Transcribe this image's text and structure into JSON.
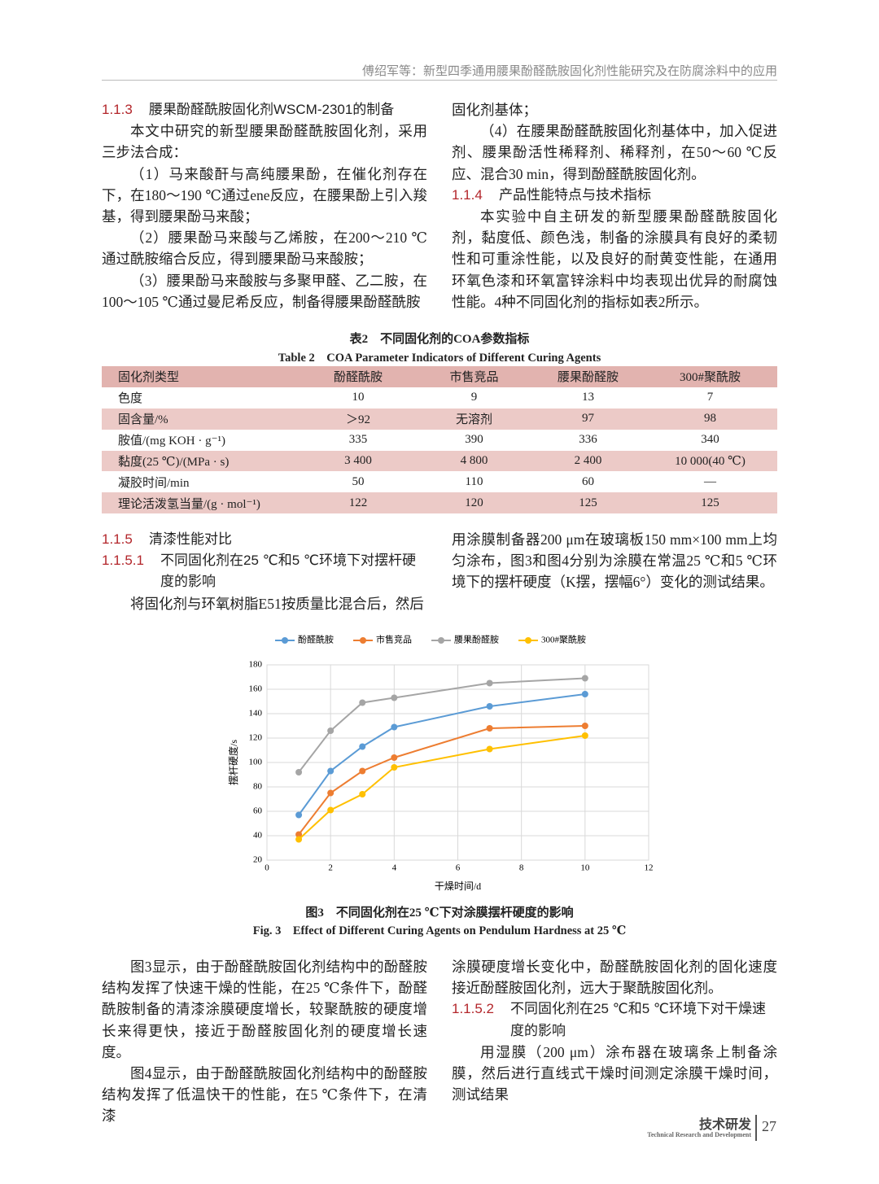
{
  "header": {
    "running_title": "傅绍军等：新型四季通用腰果酚醛酰胺固化剂性能研究及在防腐涂料中的应用"
  },
  "section_1_1_3": {
    "number": "1.1.3",
    "title": "腰果酚醛酰胺固化剂WSCM-2301的制备",
    "paragraphs": [
      "本文中研究的新型腰果酚醛酰胺固化剂，采用三步法合成：",
      "（1）马来酸酐与高纯腰果酚，在催化剂存在下，在180～190 ℃通过ene反应，在腰果酚上引入羧基，得到腰果酚马来酸；",
      "（2）腰果酚马来酸与乙烯胺，在200～210 ℃通过酰胺缩合反应，得到腰果酚马来酸胺；",
      "（3）腰果酚马来酸胺与多聚甲醛、乙二胺，在100～105 ℃通过曼尼希反应，制备得腰果酚醛酰胺",
      "固化剂基体；",
      "（4）在腰果酚醛酰胺固化剂基体中，加入促进剂、腰果酚活性稀释剂、稀释剂，在50～60 ℃反应、混合30 min，得到酚醛酰胺固化剂。"
    ]
  },
  "section_1_1_4": {
    "number": "1.1.4",
    "title": "产品性能特点与技术指标",
    "paragraphs": [
      "本实验中自主研发的新型腰果酚醛酰胺固化剂，黏度低、颜色浅，制备的涂膜具有良好的柔韧性和可重涂性能，以及良好的耐黄变性能，在通用环氧色漆和环氧富锌涂料中均表现出优异的耐腐蚀性能。4种不同固化剂的指标如表2所示。"
    ]
  },
  "table_2": {
    "caption_cn": "表2　不同固化剂的COA参数指标",
    "caption_en": "Table 2　COA Parameter Indicators of Different Curing Agents",
    "header": [
      "固化剂类型",
      "酚醛酰胺",
      "市售竞品",
      "腰果酚醛胺",
      "300#聚酰胺"
    ],
    "rows": [
      [
        "色度",
        "10",
        "9",
        "13",
        "7"
      ],
      [
        "固含量/%",
        "＞92",
        "无溶剂",
        "97",
        "98"
      ],
      [
        "胺值/(mg KOH · g⁻¹)",
        "335",
        "390",
        "336",
        "340"
      ],
      [
        "黏度(25 ℃)/(MPa · s)",
        "3 400",
        "4 800",
        "2 400",
        "10 000(40 ℃)"
      ],
      [
        "凝胶时间/min",
        "50",
        "110",
        "60",
        "—"
      ],
      [
        "理论活泼氢当量/(g · mol⁻¹)",
        "122",
        "120",
        "125",
        "125"
      ]
    ]
  },
  "section_1_1_5": {
    "number": "1.1.5",
    "title": "清漆性能对比"
  },
  "section_1_1_5_1": {
    "number": "1.1.5.1",
    "title": "不同固化剂在25 ℃和5 ℃环境下对摆杆硬度的影响",
    "paragraphs": [
      "将固化剂与环氧树脂E51按质量比混合后，然后",
      "用涂膜制备器200 μm在玻璃板150 mm×100 mm上均匀涂布，图3和图4分别为涂膜在常温25 ℃和5 ℃环境下的摆杆硬度（K摆，摆幅6°）变化的测试结果。"
    ]
  },
  "figure_3": {
    "caption_cn": "图3　不同固化剂在25 ℃下对涂膜摆杆硬度的影响",
    "caption_en": "Fig. 3　Effect of Different Curing Agents on Pendulum Hardness at 25 ℃"
  },
  "chart_data": {
    "type": "line",
    "xlabel": "干燥时间/d",
    "ylabel": "摆杆硬度/s",
    "x": [
      1,
      2,
      3,
      4,
      7,
      10
    ],
    "series": [
      {
        "name": "酚醛酰胺",
        "color": "#5b9bd5",
        "values": [
          57,
          93,
          113,
          129,
          146,
          156
        ]
      },
      {
        "name": "市售竞品",
        "color": "#ed7d31",
        "values": [
          41,
          75,
          93,
          104,
          128,
          130
        ]
      },
      {
        "name": "腰果酚醛胺",
        "color": "#a5a5a5",
        "values": [
          92,
          126,
          149,
          153,
          165,
          169
        ]
      },
      {
        "name": "300#聚酰胺",
        "color": "#ffc000",
        "values": [
          37,
          61,
          74,
          96,
          111,
          122
        ]
      }
    ],
    "xlim": [
      0,
      12
    ],
    "xticks": [
      0,
      2,
      4,
      6,
      8,
      10,
      12
    ],
    "ylim": [
      20,
      180
    ],
    "yticks": [
      20,
      40,
      60,
      80,
      100,
      120,
      140,
      160,
      180
    ],
    "grid": true,
    "legend": "top"
  },
  "discussion": {
    "paragraphs": [
      "图3显示，由于酚醛酰胺固化剂结构中的酚醛胺结构发挥了快速干燥的性能，在25 ℃条件下，酚醛酰胺制备的清漆涂膜硬度增长，较聚酰胺的硬度增长来得更快，接近于酚醛胺固化剂的硬度增长速度。",
      "图4显示，由于酚醛酰胺固化剂结构中的酚醛胺结构发挥了低温快干的性能，在5 ℃条件下，在清漆",
      "涂膜硬度增长变化中，酚醛酰胺固化剂的固化速度接近酚醛胺固化剂，远大于聚酰胺固化剂。"
    ]
  },
  "section_1_1_5_2": {
    "number": "1.1.5.2",
    "title": "不同固化剂在25 ℃和5 ℃环境下对干燥速度的影响",
    "paragraphs": [
      "用湿膜（200 μm）涂布器在玻璃条上制备涂膜，然后进行直线式干燥时间测定涂膜干燥时间，测试结果"
    ]
  },
  "footer": {
    "section_cn": "技术研发",
    "section_en": "Technical Research and Development",
    "page_number": "27"
  }
}
